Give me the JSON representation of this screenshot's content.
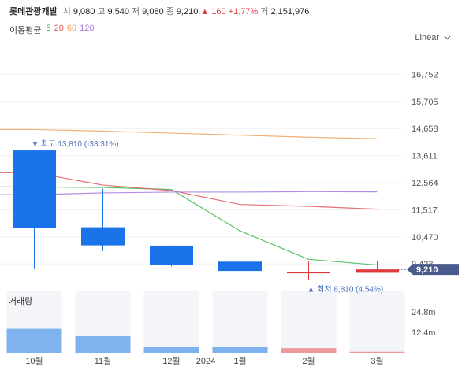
{
  "header": {
    "name": "롯데관광개발",
    "open_label": "시",
    "open": "9,080",
    "high_label": "고",
    "high": "9,540",
    "low_label": "저",
    "low": "9,080",
    "close_label": "종",
    "close": "9,210",
    "change": "▲ 160 +1.77%",
    "volume_label": "거",
    "volume": "2,151,976"
  },
  "ma": {
    "title": "이동평균",
    "items": [
      {
        "label": "5",
        "color": "#3cb64b"
      },
      {
        "label": "20",
        "color": "#e0595c"
      },
      {
        "label": "60",
        "color": "#f0a05a"
      },
      {
        "label": "120",
        "color": "#a67ce0"
      }
    ]
  },
  "scale": {
    "label": "Linear"
  },
  "current_price_tag": "9,210",
  "annotations": {
    "high": "▼ 최고 13,810 (-33.31%)",
    "low": "▲ 최저 8,810 (4.54%)"
  },
  "volume_panel": {
    "title": "거래량",
    "ticks": [
      "24.8m",
      "12.4m"
    ]
  },
  "colors": {
    "up": "#e03a3e",
    "down": "#1a73e8",
    "vol_down": "#7fb3ef",
    "vol_up": "#ef9a9a",
    "tag": "#4a5a8c"
  },
  "chart_data": {
    "type": "candlestick",
    "categories": [
      "10월",
      "11월",
      "12월",
      "1월",
      "2월",
      "3월"
    ],
    "x_extra_label": "2024",
    "ohlc": [
      {
        "open": 13810,
        "high": 13810,
        "low": 9250,
        "close": 10820,
        "dir": "down"
      },
      {
        "open": 10840,
        "high": 12330,
        "low": 9920,
        "close": 10140,
        "dir": "down"
      },
      {
        "open": 10130,
        "high": 10130,
        "low": 9320,
        "close": 9380,
        "dir": "down"
      },
      {
        "open": 9510,
        "high": 10100,
        "low": 9130,
        "close": 9150,
        "dir": "down"
      },
      {
        "open": 9120,
        "high": 9520,
        "low": 8810,
        "close": 9060,
        "dir": "up"
      },
      {
        "open": 9080,
        "high": 9540,
        "low": 9080,
        "close": 9210,
        "dir": "up"
      }
    ],
    "ma": {
      "5": [
        12400,
        12380,
        12300,
        10700,
        9600,
        9380
      ],
      "20": [
        12950,
        12470,
        12260,
        11720,
        11650,
        11540
      ],
      "60": [
        14620,
        14560,
        14480,
        14400,
        14320,
        14260
      ],
      "120": [
        12100,
        12170,
        12200,
        12200,
        12220,
        12210
      ]
    },
    "volume": [
      14.5,
      10.0,
      3.5,
      3.6,
      2.8,
      0.6
    ],
    "volume_ylim": [
      0,
      37.2
    ],
    "y_ticks": [
      16752,
      15705,
      14658,
      13611,
      12564,
      11517,
      10470,
      9423
    ],
    "ylim": [
      8910,
      17800
    ]
  }
}
